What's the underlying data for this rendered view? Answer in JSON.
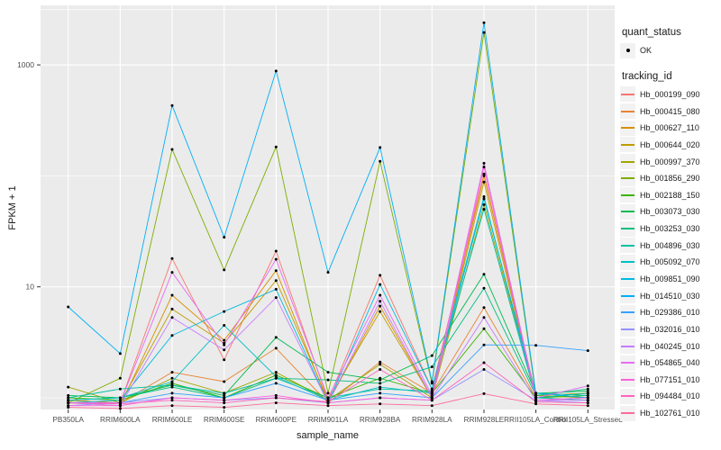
{
  "figure": {
    "y_axis_title": "FPKM + 1",
    "x_axis_title": "sample_name",
    "panel_bg": "#EBEBEB",
    "grid_color": "#FFFFFF",
    "tick_label_color": "#4D4D4D",
    "point_color": "#000000"
  },
  "legend": {
    "quant_status": {
      "title": "quant_status",
      "items": [
        "OK"
      ]
    },
    "tracking_id": {
      "title": "tracking_id"
    }
  },
  "chart_data": {
    "type": "line",
    "xlabel": "sample_name",
    "ylabel": "FPKM + 1",
    "yscale": "log10",
    "ylim": [
      0.75,
      3200
    ],
    "yticks": [
      10,
      1000
    ],
    "ytick_labels": [
      "10",
      "1000"
    ],
    "minor_gridlines": [
      1,
      100,
      3162
    ],
    "grid": true,
    "legend_position": "right",
    "categories": [
      "PB350LA",
      "RRIM600LA",
      "RRIM600LE",
      "RRIM600SE",
      "RRIM600PE",
      "RRIM901LA",
      "RRIM928BA",
      "RRIM928LA",
      "RRIM928LE",
      "RRII105LA_Control",
      "RRII105LA_Stressed"
    ],
    "series": [
      {
        "name": "Hb_000199_090",
        "color": "#F8766D",
        "values": [
          0.95,
          0.9,
          18,
          2.2,
          21,
          0.95,
          12.7,
          1.2,
          104,
          1.0,
          0.95
        ]
      },
      {
        "name": "Hb_000415_080",
        "color": "#EA8331",
        "values": [
          0.9,
          0.9,
          1.7,
          1.4,
          2.8,
          0.9,
          2.1,
          1.1,
          6.5,
          1.0,
          1.1
        ]
      },
      {
        "name": "Hb_000627_110",
        "color": "#D89000",
        "values": [
          0.9,
          0.85,
          8.4,
          3.3,
          14,
          0.9,
          6.7,
          1.0,
          100,
          1.05,
          1.0
        ]
      },
      {
        "name": "Hb_000644_020",
        "color": "#C09B00",
        "values": [
          0.95,
          0.9,
          6.3,
          3.1,
          11.4,
          0.95,
          6.0,
          1.0,
          88,
          1.0,
          0.95
        ]
      },
      {
        "name": "Hb_000997_370",
        "color": "#A3A500",
        "values": [
          1.25,
          0.9,
          1.5,
          1.1,
          1.7,
          0.95,
          2.0,
          1.0,
          55,
          1.05,
          1.1
        ]
      },
      {
        "name": "Hb_001856_290",
        "color": "#7CAE00",
        "values": [
          0.9,
          1.5,
          173,
          14.2,
          182,
          1.1,
          135,
          1.35,
          1960,
          1.05,
          1.0
        ]
      },
      {
        "name": "Hb_002188_150",
        "color": "#39B600",
        "values": [
          1.0,
          0.95,
          1.35,
          1.0,
          1.6,
          1.0,
          1.5,
          1.1,
          4.2,
          1.0,
          1.05
        ]
      },
      {
        "name": "Hb_003073_030",
        "color": "#00BB4E",
        "values": [
          1.05,
          1.0,
          1.3,
          1.05,
          3.5,
          1.7,
          1.45,
          2.4,
          13,
          1.1,
          1.15
        ]
      },
      {
        "name": "Hb_003253_030",
        "color": "#00BF7D",
        "values": [
          0.95,
          1.0,
          1.25,
          1.0,
          1.5,
          1.45,
          1.35,
          1.9,
          9.7,
          1.05,
          1.2
        ]
      },
      {
        "name": "Hb_004896_030",
        "color": "#00C1A3",
        "values": [
          1.0,
          1.2,
          1.3,
          1.1,
          1.5,
          1.0,
          1.2,
          1.15,
          50,
          1.0,
          1.1
        ]
      },
      {
        "name": "Hb_005092_070",
        "color": "#00BFC4",
        "values": [
          0.95,
          1.0,
          1.4,
          4.5,
          1.55,
          0.95,
          1.25,
          1.1,
          62,
          1.1,
          1.05
        ]
      },
      {
        "name": "Hb_009851_090",
        "color": "#00BAE0",
        "values": [
          0.9,
          0.95,
          3.65,
          6.0,
          9.5,
          0.9,
          10.5,
          1.2,
          65,
          1.0,
          0.95
        ]
      },
      {
        "name": "Hb_014510_030",
        "color": "#00B0F6",
        "values": [
          6.6,
          2.5,
          430,
          28,
          880,
          13.5,
          180,
          1.4,
          2400,
          1.1,
          1.0
        ]
      },
      {
        "name": "Hb_029386_010",
        "color": "#35A2FF",
        "values": [
          0.9,
          0.9,
          1.1,
          1.0,
          1.35,
          0.95,
          1.1,
          1.0,
          3.0,
          2.97,
          2.66
        ]
      },
      {
        "name": "Hb_032016_010",
        "color": "#9590FF",
        "values": [
          0.85,
          0.9,
          1.0,
          0.95,
          1.0,
          0.9,
          1.0,
          0.95,
          1.8,
          0.95,
          0.9
        ]
      },
      {
        "name": "Hb_040245_010",
        "color": "#C77CFF",
        "values": [
          0.9,
          0.85,
          5.3,
          2.7,
          8.0,
          0.9,
          7.4,
          1.0,
          5.3,
          0.95,
          0.95
        ]
      },
      {
        "name": "Hb_054865_040",
        "color": "#E76BF3",
        "values": [
          0.9,
          0.9,
          13.5,
          3.0,
          17.7,
          1.0,
          8.4,
          1.05,
          130,
          1.0,
          1.28
        ]
      },
      {
        "name": "Hb_077151_010",
        "color": "#FA62DB",
        "values": [
          0.85,
          0.85,
          1.0,
          0.95,
          1.05,
          0.9,
          1.0,
          0.95,
          120,
          0.95,
          1.0
        ]
      },
      {
        "name": "Hb_094484_010",
        "color": "#FF62BC",
        "values": [
          0.9,
          0.88,
          0.95,
          0.9,
          1.0,
          0.92,
          1.8,
          0.95,
          2.07,
          0.92,
          0.9
        ]
      },
      {
        "name": "Hb_102761_010",
        "color": "#FF6A98",
        "values": [
          0.82,
          0.8,
          0.85,
          0.82,
          0.9,
          0.85,
          0.88,
          0.85,
          1.09,
          0.88,
          0.85
        ]
      }
    ]
  }
}
